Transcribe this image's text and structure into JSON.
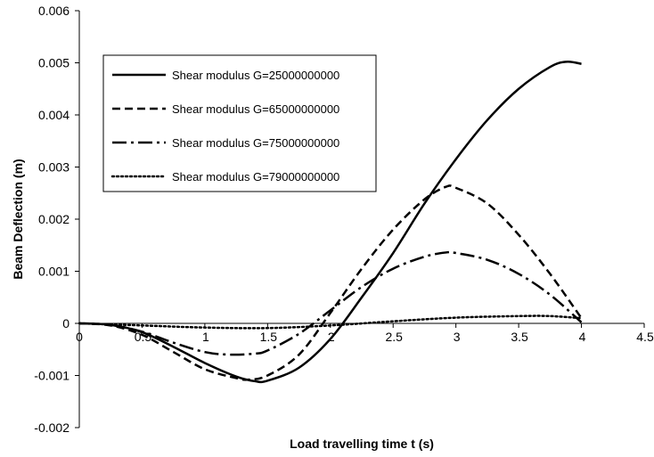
{
  "chart_data": {
    "type": "line",
    "title": "",
    "xlabel": "Load travelling time t (s)",
    "ylabel": "Beam Deflection (m)",
    "xlim": [
      0,
      4.5
    ],
    "ylim": [
      -0.002,
      0.006
    ],
    "x_ticks": [
      0,
      0.5,
      1,
      1.5,
      2,
      2.5,
      3,
      3.5,
      4,
      4.5
    ],
    "x_tick_labels": [
      "0",
      "0.5",
      "1",
      "1.5",
      "2",
      "2.5",
      "3",
      "3.5",
      "4",
      "4.5"
    ],
    "y_ticks": [
      -0.002,
      -0.001,
      0,
      0.001,
      0.002,
      0.003,
      0.004,
      0.005,
      0.006
    ],
    "y_tick_labels": [
      "-0.002",
      "-0.001",
      "0",
      "0.001",
      "0.002",
      "0.003",
      "0.004",
      "0.005",
      "0.006"
    ],
    "grid": false,
    "legend_position": "top-left",
    "series": [
      {
        "name": "Shear modulus G=25000000000",
        "style": "solid",
        "color": "#000000",
        "points": [
          [
            0,
            0
          ],
          [
            0.25,
            -3e-05
          ],
          [
            0.5,
            -0.00017
          ],
          [
            0.75,
            -0.00045
          ],
          [
            1.0,
            -0.00076
          ],
          [
            1.25,
            -0.00102
          ],
          [
            1.4,
            -0.00111
          ],
          [
            1.5,
            -0.0011
          ],
          [
            1.75,
            -0.00085
          ],
          [
            2.0,
            -0.0003
          ],
          [
            2.25,
            0.0005
          ],
          [
            2.5,
            0.00135
          ],
          [
            2.75,
            0.0023
          ],
          [
            3.0,
            0.00315
          ],
          [
            3.25,
            0.0039
          ],
          [
            3.5,
            0.0045
          ],
          [
            3.75,
            0.00492
          ],
          [
            3.88,
            0.00502
          ],
          [
            4.0,
            0.00498
          ]
        ]
      },
      {
        "name": "Shear modulus G=65000000000",
        "style": "dashed",
        "color": "#000000",
        "points": [
          [
            0,
            0
          ],
          [
            0.25,
            -4e-05
          ],
          [
            0.5,
            -0.00022
          ],
          [
            0.75,
            -0.00055
          ],
          [
            1.0,
            -0.00088
          ],
          [
            1.25,
            -0.00105
          ],
          [
            1.35,
            -0.00108
          ],
          [
            1.5,
            -0.001
          ],
          [
            1.75,
            -0.0006
          ],
          [
            2.0,
            0.0002
          ],
          [
            2.25,
            0.00105
          ],
          [
            2.5,
            0.0018
          ],
          [
            2.75,
            0.00238
          ],
          [
            2.92,
            0.00262
          ],
          [
            3.0,
            0.0026
          ],
          [
            3.25,
            0.0023
          ],
          [
            3.5,
            0.0017
          ],
          [
            3.75,
            0.00095
          ],
          [
            4.0,
            0.0001
          ]
        ]
      },
      {
        "name": "Shear modulus G=75000000000",
        "style": "dash-dot",
        "color": "#000000",
        "points": [
          [
            0,
            0
          ],
          [
            0.25,
            -3e-05
          ],
          [
            0.5,
            -0.00016
          ],
          [
            0.75,
            -0.00037
          ],
          [
            1.0,
            -0.00055
          ],
          [
            1.2,
            -0.0006
          ],
          [
            1.4,
            -0.00058
          ],
          [
            1.5,
            -0.00052
          ],
          [
            1.75,
            -0.0002
          ],
          [
            2.0,
            0.00025
          ],
          [
            2.25,
            0.0007
          ],
          [
            2.5,
            0.00105
          ],
          [
            2.75,
            0.00128
          ],
          [
            2.92,
            0.00136
          ],
          [
            3.0,
            0.00135
          ],
          [
            3.25,
            0.00122
          ],
          [
            3.5,
            0.00095
          ],
          [
            3.75,
            0.00055
          ],
          [
            4.0,
            2e-05
          ]
        ]
      },
      {
        "name": "Shear modulus G=79000000000",
        "style": "dotted",
        "color": "#000000",
        "points": [
          [
            0,
            0
          ],
          [
            0.5,
            -4e-05
          ],
          [
            1.0,
            -8e-05
          ],
          [
            1.5,
            -9e-05
          ],
          [
            2.0,
            -4e-05
          ],
          [
            2.5,
            4e-05
          ],
          [
            3.0,
            0.00011
          ],
          [
            3.5,
            0.00014
          ],
          [
            3.75,
            0.00014
          ],
          [
            4.0,
            0.0001
          ]
        ]
      }
    ]
  }
}
